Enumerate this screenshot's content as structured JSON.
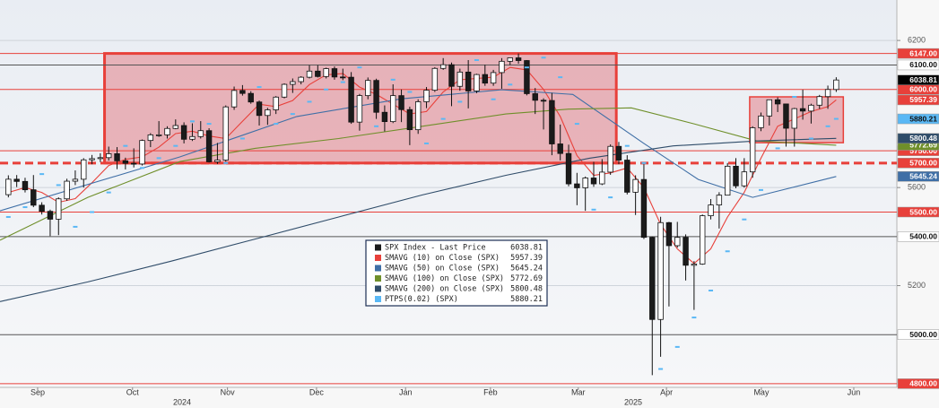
{
  "chart_data": {
    "type": "candlestick",
    "name": "SPX Index - Last Price",
    "up_color": "#ffffff",
    "down_color": "#1b1b1b",
    "outline_color": "#111111",
    "x": [
      1,
      3,
      5,
      7,
      9,
      11,
      13,
      15,
      17,
      19,
      21,
      23,
      25,
      27,
      29,
      31,
      33,
      35,
      37,
      39,
      41,
      43,
      45,
      47,
      49,
      51,
      53,
      55,
      57,
      59,
      61,
      63,
      65,
      67,
      69,
      71,
      73,
      75,
      77,
      79,
      81,
      83,
      85,
      87,
      89,
      91,
      93,
      95,
      97,
      99,
      101,
      103,
      105,
      107,
      109,
      111,
      113,
      115,
      117,
      119,
      121,
      123,
      125,
      127,
      129,
      131,
      133,
      135,
      137,
      139,
      141,
      143,
      145,
      147,
      149,
      151,
      153,
      155,
      157,
      159,
      161,
      163,
      165,
      167,
      169,
      171,
      173,
      175,
      177,
      179,
      181,
      183,
      185,
      187,
      189,
      191,
      193,
      195,
      197,
      199
    ],
    "open": [
      5571,
      5634,
      5625,
      5591,
      5528,
      5503,
      5471,
      5554,
      5626,
      5634,
      5713,
      5718,
      5722,
      5738,
      5709,
      5699,
      5696,
      5792,
      5815,
      5815,
      5841,
      5853,
      5797,
      5808,
      5832,
      5705,
      5712,
      5929,
      5996,
      5984,
      5949,
      5894,
      5917,
      5969,
      6021,
      6032,
      6050,
      6075,
      6053,
      6085,
      6051,
      6050,
      5867,
      5975,
      6037,
      5907,
      5869,
      5975,
      5918,
      5836,
      5950,
      5997,
      6086,
      6101,
      6013,
      6071,
      5994,
      6061,
      6026,
      6069,
      6115,
      6129,
      6118,
      5983,
      5956,
      5955,
      5778,
      5739,
      5615,
      5599,
      5639,
      5615,
      5663,
      5768,
      5712,
      5581,
      5633,
      5397,
      5062,
      5457,
      5363,
      5397,
      5283,
      5288,
      5485,
      5529,
      5569,
      5687,
      5607,
      5664,
      5844,
      5892,
      5958,
      5941,
      5842,
      5922,
      5912,
      5936,
      5971,
      6000
    ],
    "high": [
      5650,
      5651,
      5640,
      5651,
      5540,
      5510,
      5560,
      5636,
      5670,
      5720,
      5733,
      5740,
      5767,
      5765,
      5722,
      5760,
      5796,
      5822,
      5871,
      5850,
      5878,
      5866,
      5862,
      5871,
      5842,
      5782,
      5935,
      6012,
      6018,
      5993,
      5955,
      5925,
      5973,
      6025,
      6045,
      6054,
      6099,
      6099,
      6089,
      6094,
      6085,
      6071,
      5982,
      6049,
      6044,
      5935,
      6021,
      6000,
      5930,
      5960,
      6010,
      6091,
      6128,
      6110,
      6085,
      6120,
      6064,
      6101,
      6080,
      6128,
      6129,
      6147,
      6120,
      6006,
      5964,
      5986,
      5857,
      5775,
      5660,
      5645,
      5705,
      5716,
      5776,
      5786,
      5732,
      5650,
      5695,
      5400,
      5481,
      5460,
      5460,
      5409,
      5300,
      5490,
      5553,
      5581,
      5700,
      5720,
      5720,
      5850,
      5906,
      5959,
      5968,
      5942,
      5925,
      5999,
      5942,
      5978,
      6016,
      6050
    ],
    "low": [
      5560,
      5602,
      5580,
      5520,
      5490,
      5402,
      5406,
      5546,
      5610,
      5600,
      5695,
      5704,
      5710,
      5675,
      5674,
      5682,
      5690,
      5765,
      5807,
      5800,
      5838,
      5780,
      5790,
      5800,
      5702,
      5696,
      5706,
      5917,
      5975,
      5942,
      5853,
      5856,
      5900,
      5964,
      5986,
      6021,
      6045,
      6049,
      6045,
      6040,
      6038,
      5860,
      5832,
      5960,
      5880,
      5829,
      5863,
      5867,
      5773,
      5819,
      5924,
      5990,
      6080,
      5932,
      5995,
      5923,
      5985,
      6015,
      6015,
      6003,
      6100,
      6105,
      5976,
      5900,
      5837,
      5732,
      5711,
      5605,
      5528,
      5505,
      5603,
      5610,
      5652,
      5695,
      5572,
      5488,
      5390,
      4835,
      4910,
      5115,
      5355,
      5221,
      5101,
      5285,
      5470,
      5433,
      5570,
      5597,
      5600,
      5640,
      5830,
      5853,
      5908,
      5767,
      5767,
      5877,
      5861,
      5921,
      5921,
      5990
    ],
    "close": [
      5634,
      5625,
      5591,
      5528,
      5503,
      5471,
      5554,
      5626,
      5634,
      5713,
      5718,
      5722,
      5738,
      5709,
      5699,
      5696,
      5792,
      5815,
      5815,
      5841,
      5853,
      5797,
      5808,
      5832,
      5705,
      5712,
      5929,
      5996,
      5984,
      5949,
      5894,
      5917,
      5969,
      6021,
      6032,
      6050,
      6075,
      6053,
      6085,
      6051,
      6050,
      5867,
      5975,
      6037,
      5907,
      5869,
      5975,
      5918,
      5836,
      5950,
      5997,
      6086,
      6101,
      6013,
      6071,
      5994,
      6061,
      6026,
      6069,
      6115,
      6129,
      6118,
      5983,
      5956,
      5955,
      5778,
      5739,
      5615,
      5599,
      5639,
      5615,
      5663,
      5768,
      5712,
      5581,
      5633,
      5397,
      5062,
      5457,
      5363,
      5397,
      5283,
      5288,
      5485,
      5529,
      5569,
      5687,
      5607,
      5664,
      5844,
      5892,
      5958,
      5941,
      5842,
      5922,
      5912,
      5936,
      5971,
      6000,
      6038.81
    ],
    "xlim": [
      -1,
      213.5
    ],
    "xticks": [
      {
        "value": 8,
        "label": "Sep"
      },
      {
        "value": 30.7,
        "label": "Oct"
      },
      {
        "value": 53.4,
        "label": "Nov"
      },
      {
        "value": 74.7,
        "label": "Dec"
      },
      {
        "value": 96,
        "label": "Jan"
      },
      {
        "value": 116.3,
        "label": "Feb"
      },
      {
        "value": 137.3,
        "label": "Mar"
      },
      {
        "value": 158.4,
        "label": "Apr"
      },
      {
        "value": 181.1,
        "label": "May"
      },
      {
        "value": 203.2,
        "label": "Jun"
      }
    ],
    "x_group_labels": [
      "2024",
      "2025"
    ],
    "ylim": [
      4785,
      6365
    ],
    "yticks": [
      6200,
      5600,
      5200
    ],
    "grid": true,
    "overlays": [
      {
        "name": "SMAVG (10) on Close (SPX)",
        "color": "#e8403a",
        "style": "line",
        "x": [
          1,
          5,
          9,
          13,
          17,
          21,
          25,
          29,
          33,
          37,
          41,
          45,
          49,
          53,
          57,
          61,
          65,
          69,
          73,
          77,
          81,
          85,
          89,
          93,
          97,
          101,
          105,
          109,
          113,
          117,
          121,
          125,
          129,
          133,
          137,
          141,
          145,
          149,
          153,
          157,
          161,
          165,
          169,
          173,
          177,
          181,
          185,
          189,
          193,
          197,
          199
        ],
        "values": [
          5580,
          5600,
          5580,
          5540,
          5555,
          5620,
          5690,
          5715,
          5725,
          5765,
          5820,
          5830,
          5810,
          5800,
          5870,
          5940,
          5930,
          5955,
          6020,
          6060,
          6065,
          6010,
          5980,
          5940,
          5900,
          5910,
          5990,
          6040,
          6045,
          6050,
          6090,
          6080,
          6000,
          5890,
          5730,
          5650,
          5660,
          5680,
          5600,
          5450,
          5350,
          5290,
          5350,
          5480,
          5580,
          5720,
          5850,
          5880,
          5910,
          5930,
          5957.39
        ]
      },
      {
        "name": "SMAVG (50) on Close (SPX)",
        "color": "#3f6fa6",
        "style": "line",
        "x": [
          -1,
          42,
          70,
          95,
          119,
          136,
          153,
          166,
          179,
          199
        ],
        "values": [
          5505,
          5725,
          5890,
          5962,
          5999,
          5980,
          5780,
          5633,
          5560,
          5645.24
        ]
      },
      {
        "name": "SMAVG (100) on Close (SPX)",
        "color": "#6f8f2a",
        "style": "line",
        "x": [
          -1,
          20,
          42,
          60,
          80,
          100,
          120,
          135,
          150,
          165,
          180,
          199
        ],
        "values": [
          5385,
          5560,
          5706,
          5760,
          5800,
          5850,
          5900,
          5920,
          5925,
          5860,
          5790,
          5772.69
        ]
      },
      {
        "name": "SMAVG (200) on Close (SPX)",
        "color": "#2f4c69",
        "style": "line",
        "x": [
          -1,
          20,
          40,
          60,
          80,
          100,
          120,
          140,
          160,
          180,
          199
        ],
        "values": [
          5135,
          5215,
          5300,
          5390,
          5480,
          5570,
          5650,
          5720,
          5770,
          5790,
          5800.48
        ]
      },
      {
        "name": "PTPS(0.02) (SPX)",
        "color": "#5ab8f5",
        "style": "dots",
        "x": [
          1,
          5,
          9,
          13,
          17,
          21,
          25,
          29,
          33,
          37,
          41,
          45,
          49,
          53,
          57,
          61,
          65,
          69,
          73,
          77,
          81,
          85,
          89,
          93,
          97,
          101,
          105,
          109,
          113,
          117,
          121,
          125,
          129,
          133,
          137,
          141,
          145,
          149,
          153,
          157,
          161,
          165,
          169,
          173,
          177,
          181,
          185,
          189,
          193,
          197,
          199
        ],
        "values": [
          5480,
          5520,
          5655,
          5610,
          5440,
          5500,
          5580,
          5770,
          5680,
          5720,
          5770,
          5870,
          5860,
          5700,
          5800,
          6010,
          5860,
          5900,
          5950,
          6000,
          6030,
          6090,
          5850,
          6040,
          5990,
          5780,
          5880,
          5950,
          6120,
          5960,
          6020,
          6090,
          6130,
          6050,
          5860,
          5510,
          5560,
          5770,
          5700,
          4860,
          4950,
          5070,
          5180,
          5340,
          5470,
          5590,
          5760,
          5970,
          5800,
          5850,
          5880.21
        ]
      }
    ],
    "hlines": [
      {
        "value": 6147,
        "label": "6147.00",
        "color": "#e8403a",
        "style": "solid"
      },
      {
        "value": 6100,
        "label": "6100.00",
        "color": "#ffffff",
        "line_color": "#555555",
        "style": "solid"
      },
      {
        "value": 6000,
        "label": "6000.00",
        "color": "#e8403a",
        "style": "solid"
      },
      {
        "value": 5750,
        "label": "5750.00",
        "color": "#e8403a",
        "style": "solid"
      },
      {
        "value": 5700,
        "label": "5700.00",
        "color": "#e8403a",
        "style": "dashed"
      },
      {
        "value": 5500,
        "label": "5500.00",
        "color": "#e8403a",
        "style": "solid"
      },
      {
        "value": 5400,
        "label": "5400.00",
        "color": "#ffffff",
        "line_color": "#555555",
        "style": "solid"
      },
      {
        "value": 5000,
        "label": "5000.00",
        "color": "#ffffff",
        "line_color": "#555555",
        "style": "solid"
      },
      {
        "value": 4800,
        "label": "4800.00",
        "color": "#e8403a",
        "style": "solid"
      }
    ],
    "boxes": [
      {
        "x": [
          24,
          146.4
        ],
        "y": [
          5700,
          6147
        ]
      },
      {
        "x": [
          178.3,
          200.7
        ],
        "y": [
          5783,
          5970
        ]
      }
    ]
  }
}
